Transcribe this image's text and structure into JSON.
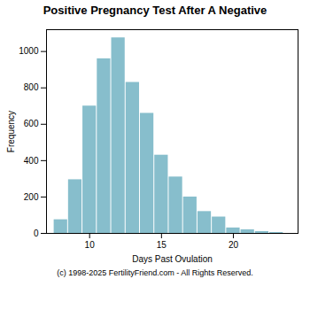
{
  "chart_data": {
    "type": "bar",
    "title": "Positive Pregnancy Test After A Negative",
    "xlabel": "Days Past Ovulation",
    "ylabel": "Frequency",
    "x": [
      8,
      9,
      10,
      11,
      12,
      13,
      14,
      15,
      16,
      17,
      18,
      19,
      20,
      21,
      22,
      23
    ],
    "values": [
      75,
      295,
      700,
      960,
      1075,
      830,
      660,
      430,
      310,
      200,
      120,
      90,
      30,
      20,
      10,
      5
    ],
    "color": "#87BECC",
    "xlim": [
      7.0,
      24.5
    ],
    "xticks": [
      10,
      15,
      20
    ],
    "ylim": [
      0,
      1120
    ],
    "yticks": [
      0,
      200,
      400,
      600,
      800,
      1000
    ],
    "grid": false,
    "annotations": [
      "(c) 1998-2025 FertilityFriend.com - All Rights Reserved."
    ]
  }
}
